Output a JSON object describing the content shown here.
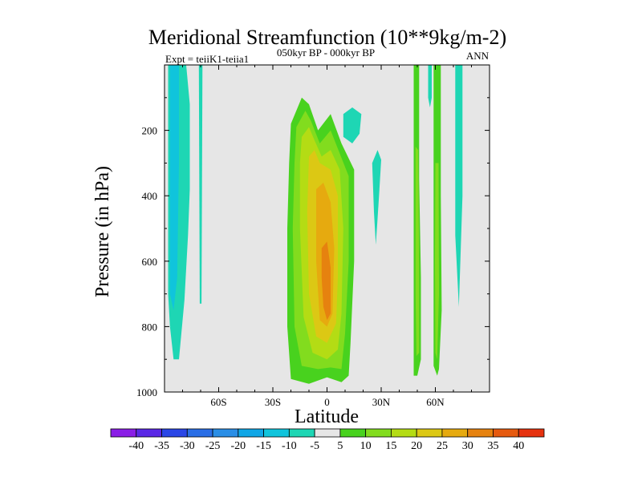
{
  "chart_data": {
    "type": "heatmap",
    "title": "Meridional Streamfunction (10**9kg/m-2)",
    "subtitle_left": "Expt = teiiK1-teiia1",
    "subtitle_center": "050kyr BP - 000kyr BP",
    "subtitle_right": "ANN",
    "xlabel": "Latitude",
    "ylabel": "Pressure (in hPa)",
    "x_ticks": [
      {
        "value": -60,
        "label": "60S"
      },
      {
        "value": -30,
        "label": "30S"
      },
      {
        "value": 0,
        "label": "0"
      },
      {
        "value": 30,
        "label": "30N"
      },
      {
        "value": 60,
        "label": "60N"
      }
    ],
    "y_ticks": [
      {
        "value": 200,
        "label": "200"
      },
      {
        "value": 400,
        "label": "400"
      },
      {
        "value": 600,
        "label": "600"
      },
      {
        "value": 800,
        "label": "800"
      },
      {
        "value": 1000,
        "label": "1000"
      }
    ],
    "xlim": [
      -90,
      90
    ],
    "ylim": [
      1000,
      0
    ],
    "background_color": "#e6e6e6",
    "colorbar": {
      "labels": [
        "-40",
        "-35",
        "-30",
        "-25",
        "-20",
        "-15",
        "-10",
        "-5",
        "5",
        "10",
        "15",
        "20",
        "25",
        "30",
        "35",
        "40"
      ],
      "colors": [
        "#8a1ee6",
        "#5a28e6",
        "#2a46e6",
        "#2a6ee6",
        "#2a8ee6",
        "#0fa6e6",
        "#10c4dc",
        "#1ed6b4",
        "#e6e6e6",
        "#48d21e",
        "#82dc1e",
        "#b4dc14",
        "#dcc814",
        "#e6aa0f",
        "#e6820f",
        "#e65a0f",
        "#e6320f"
      ]
    },
    "regions": [
      {
        "level": "-10",
        "color": "#1ed6b4",
        "points": [
          [
            -88,
            0
          ],
          [
            -78,
            0
          ],
          [
            -76,
            120
          ],
          [
            -76,
            380
          ],
          [
            -77,
            520
          ],
          [
            -79,
            720
          ],
          [
            -82,
            900
          ],
          [
            -85,
            900
          ],
          [
            -87,
            800
          ],
          [
            -88,
            700
          ]
        ]
      },
      {
        "level": "-15",
        "color": "#10c4dc",
        "points": [
          [
            -87,
            0
          ],
          [
            -82,
            0
          ],
          [
            -82,
            300
          ],
          [
            -83,
            650
          ],
          [
            -85,
            750
          ],
          [
            -87,
            700
          ]
        ]
      },
      {
        "level": "-10",
        "color": "#1ed6b4",
        "points": [
          [
            -71,
            0
          ],
          [
            -69,
            0
          ],
          [
            -69.5,
            730
          ],
          [
            -70.5,
            730
          ]
        ]
      },
      {
        "level": "5",
        "color": "#48d21e",
        "points": [
          [
            -20,
            180
          ],
          [
            -14,
            100
          ],
          [
            -10,
            120
          ],
          [
            -5,
            200
          ],
          [
            2,
            150
          ],
          [
            8,
            240
          ],
          [
            15,
            320
          ],
          [
            15,
            600
          ],
          [
            13,
            850
          ],
          [
            12,
            950
          ],
          [
            8,
            970
          ],
          [
            0,
            955
          ],
          [
            -10,
            975
          ],
          [
            -20,
            960
          ],
          [
            -22,
            800
          ],
          [
            -22,
            500
          ],
          [
            -21,
            300
          ]
        ]
      },
      {
        "level": "10",
        "color": "#82dc1e",
        "points": [
          [
            -17,
            190
          ],
          [
            -12,
            140
          ],
          [
            -9,
            170
          ],
          [
            -4,
            240
          ],
          [
            2,
            200
          ],
          [
            7,
            270
          ],
          [
            12,
            340
          ],
          [
            12,
            600
          ],
          [
            10,
            820
          ],
          [
            8,
            930
          ],
          [
            2,
            925
          ],
          [
            -5,
            930
          ],
          [
            -14,
            920
          ],
          [
            -18,
            800
          ],
          [
            -19,
            500
          ],
          [
            -18,
            300
          ]
        ]
      },
      {
        "level": "15",
        "color": "#b4dc14",
        "points": [
          [
            -14,
            220
          ],
          [
            -10,
            190
          ],
          [
            -7,
            230
          ],
          [
            -3,
            280
          ],
          [
            2,
            260
          ],
          [
            7,
            320
          ],
          [
            9,
            500
          ],
          [
            8,
            760
          ],
          [
            6,
            870
          ],
          [
            0,
            900
          ],
          [
            -8,
            880
          ],
          [
            -13,
            770
          ],
          [
            -15,
            500
          ],
          [
            -15,
            300
          ]
        ]
      },
      {
        "level": "20",
        "color": "#dcc814",
        "points": [
          [
            -10,
            280
          ],
          [
            -7,
            260
          ],
          [
            -4,
            300
          ],
          [
            2,
            320
          ],
          [
            6,
            400
          ],
          [
            6,
            650
          ],
          [
            5,
            790
          ],
          [
            0,
            850
          ],
          [
            -6,
            830
          ],
          [
            -10,
            700
          ],
          [
            -11,
            450
          ]
        ]
      },
      {
        "level": "25",
        "color": "#e6aa0f",
        "points": [
          [
            -6,
            380
          ],
          [
            -2,
            360
          ],
          [
            2,
            420
          ],
          [
            4,
            560
          ],
          [
            3,
            760
          ],
          [
            0,
            800
          ],
          [
            -4,
            780
          ],
          [
            -6,
            600
          ]
        ]
      },
      {
        "level": "30",
        "color": "#e6820f",
        "points": [
          [
            -3,
            560
          ],
          [
            0,
            540
          ],
          [
            2,
            620
          ],
          [
            2,
            760
          ],
          [
            0,
            780
          ],
          [
            -2,
            740
          ],
          [
            -3,
            650
          ]
        ]
      },
      {
        "level": "-10",
        "color": "#1ed6b4",
        "points": [
          [
            9,
            150
          ],
          [
            14,
            130
          ],
          [
            19,
            150
          ],
          [
            18,
            210
          ],
          [
            14,
            240
          ],
          [
            9,
            220
          ]
        ]
      },
      {
        "level": "-10",
        "color": "#1ed6b4",
        "points": [
          [
            25,
            300
          ],
          [
            28,
            260
          ],
          [
            30,
            290
          ],
          [
            29,
            380
          ],
          [
            28,
            470
          ],
          [
            27,
            550
          ],
          [
            26,
            450
          ]
        ]
      },
      {
        "level": "-10",
        "color": "#1ed6b4",
        "points": [
          [
            71,
            0
          ],
          [
            75,
            0
          ],
          [
            75,
            400
          ],
          [
            73,
            740
          ],
          [
            71,
            520
          ]
        ]
      },
      {
        "level": "5",
        "color": "#48d21e",
        "points": [
          [
            48,
            0
          ],
          [
            51,
            0
          ],
          [
            51,
            350
          ],
          [
            52,
            650
          ],
          [
            52,
            900
          ],
          [
            50,
            950
          ],
          [
            48,
            950
          ],
          [
            48,
            700
          ],
          [
            48,
            400
          ]
        ]
      },
      {
        "level": "10",
        "color": "#82dc1e",
        "points": [
          [
            49,
            250
          ],
          [
            50.5,
            260
          ],
          [
            51,
            600
          ],
          [
            51,
            880
          ],
          [
            49.5,
            890
          ],
          [
            49,
            700
          ]
        ]
      },
      {
        "level": "5",
        "color": "#48d21e",
        "points": [
          [
            59,
            0
          ],
          [
            63,
            0
          ],
          [
            63,
            400
          ],
          [
            63.5,
            750
          ],
          [
            62,
            930
          ],
          [
            61,
            950
          ],
          [
            59,
            920
          ],
          [
            59,
            600
          ]
        ]
      },
      {
        "level": "10",
        "color": "#82dc1e",
        "points": [
          [
            60,
            300
          ],
          [
            61.8,
            300
          ],
          [
            62,
            700
          ],
          [
            61,
            900
          ],
          [
            60,
            880
          ],
          [
            59.8,
            600
          ]
        ]
      },
      {
        "level": "-10",
        "color": "#1ed6b4",
        "points": [
          [
            56,
            0
          ],
          [
            58,
            0
          ],
          [
            58,
            100
          ],
          [
            57,
            130
          ],
          [
            56,
            100
          ]
        ]
      }
    ]
  }
}
